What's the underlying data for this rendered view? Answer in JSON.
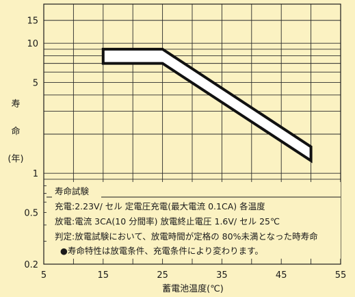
{
  "colors": {
    "background": "#fbf2c2",
    "grid": "#2a2a2a",
    "band_fill": "#ffffff",
    "band_edge": "#111111"
  },
  "chart_data": {
    "type": "line",
    "xlabel": "蓄電池温度(℃)",
    "ylabel": [
      "寿",
      "命",
      "(年)"
    ],
    "xlim": [
      5,
      55
    ],
    "ylim": [
      0.2,
      20
    ],
    "yscale": "log",
    "grid": true,
    "x_ticks": [
      5,
      15,
      25,
      35,
      45,
      55
    ],
    "x_tick_labels": [
      "5",
      "15",
      "25",
      "35",
      "45",
      "55"
    ],
    "x_minor_step": 5,
    "y_ticks": [
      0.2,
      0.5,
      1,
      5,
      10,
      15
    ],
    "y_tick_labels": [
      "0.2",
      "0.5",
      "1",
      "5",
      "10",
      "15"
    ],
    "y_gridlines": [
      0.3,
      0.4,
      0.5,
      0.6,
      0.7,
      0.8,
      0.9,
      1,
      2,
      3,
      4,
      5,
      6,
      7,
      8,
      9,
      10,
      15
    ],
    "band": {
      "x": [
        15,
        25,
        50
      ],
      "upper": [
        9,
        9,
        1.6
      ],
      "lower": [
        7,
        7,
        1.25
      ]
    },
    "annotation": {
      "title": "寿命試験",
      "lines": [
        "充電:2.23V/ セル 定電圧充電(最大電流 0.1CA) 各温度",
        "放電:電流 3CA(10 分間率) 放電終止電圧 1.6V/ セル 25℃",
        "判定:放電試験において、放電時間が定格の 80%未満となった時寿命"
      ],
      "note": "●寿命特性は放電条件、充電条件により変わります。"
    }
  }
}
